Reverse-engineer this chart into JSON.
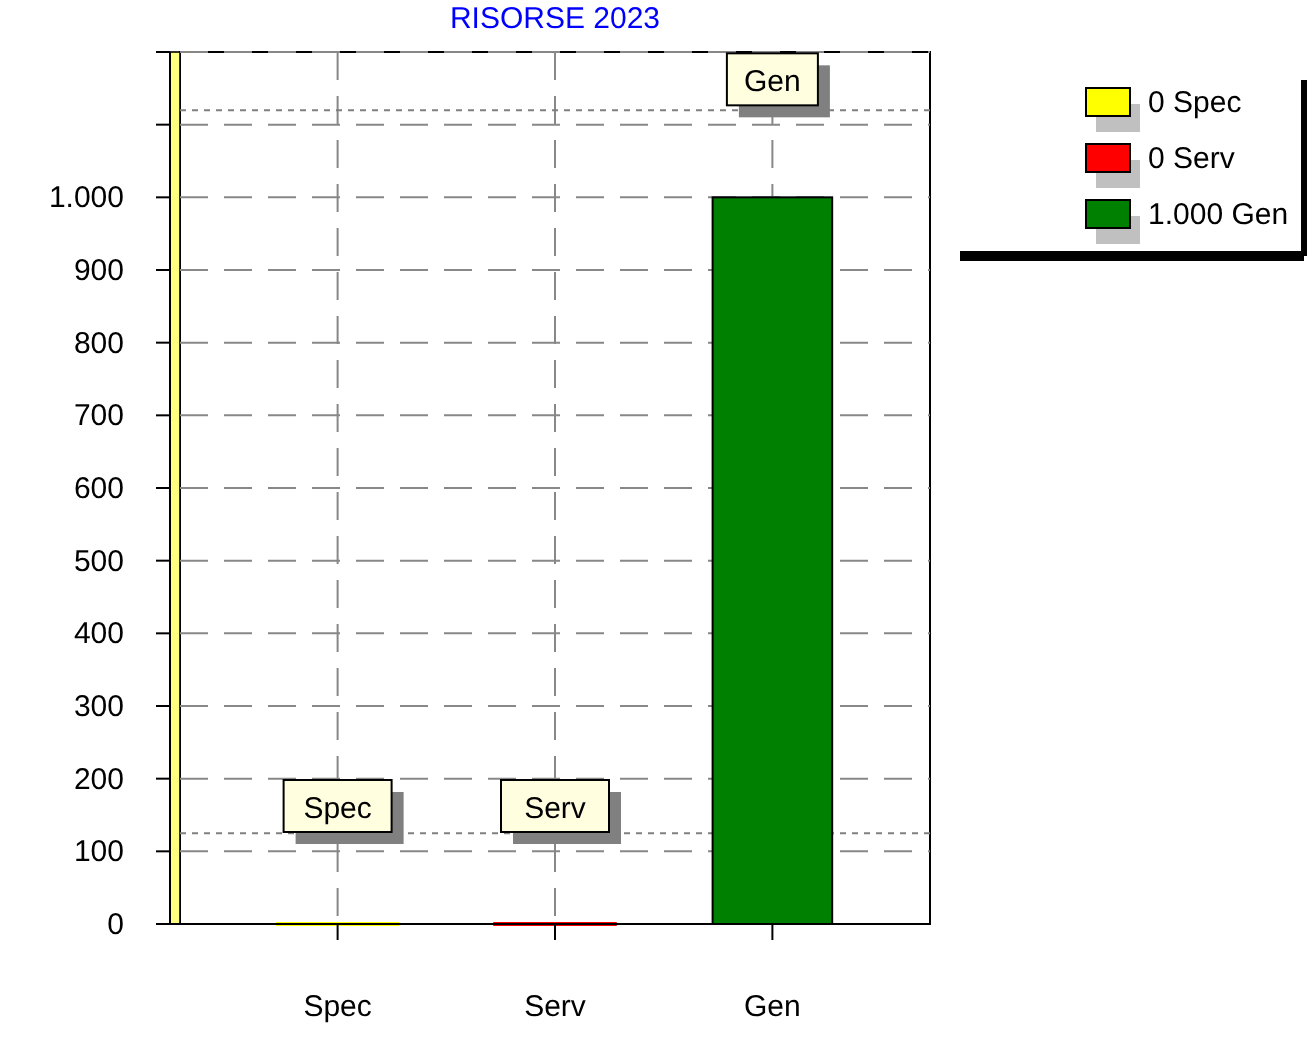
{
  "chart_data": {
    "type": "bar",
    "title": "RISORSE 2023",
    "categories": [
      "Spec",
      "Serv",
      "Gen"
    ],
    "series": [
      {
        "name": "0 Spec",
        "color": "#ffff00",
        "values": [
          0,
          null,
          null
        ]
      },
      {
        "name": "0 Serv",
        "color": "#ff0000",
        "values": [
          null,
          0,
          null
        ]
      },
      {
        "name": "1.000 Gen",
        "color": "#008000",
        "values": [
          null,
          null,
          1000
        ]
      }
    ],
    "ylim": [
      0,
      1200
    ],
    "yticks": [
      0,
      100,
      200,
      300,
      400,
      500,
      600,
      700,
      800,
      900,
      {
        "value": 1000,
        "label": "1.000"
      },
      {
        "value": 1100,
        "label": null
      },
      {
        "value": 1200,
        "label": null
      }
    ],
    "grid": true,
    "legend": "top right",
    "ref_lines": [
      {
        "axis": "y",
        "value": 1120,
        "color": "#808080",
        "line_style": "dotted"
      },
      {
        "axis": "y",
        "value": 125,
        "color": "#808080",
        "line_style": "dotted"
      }
    ],
    "annotations": [
      "Spec",
      "Serv",
      "Gen"
    ]
  }
}
